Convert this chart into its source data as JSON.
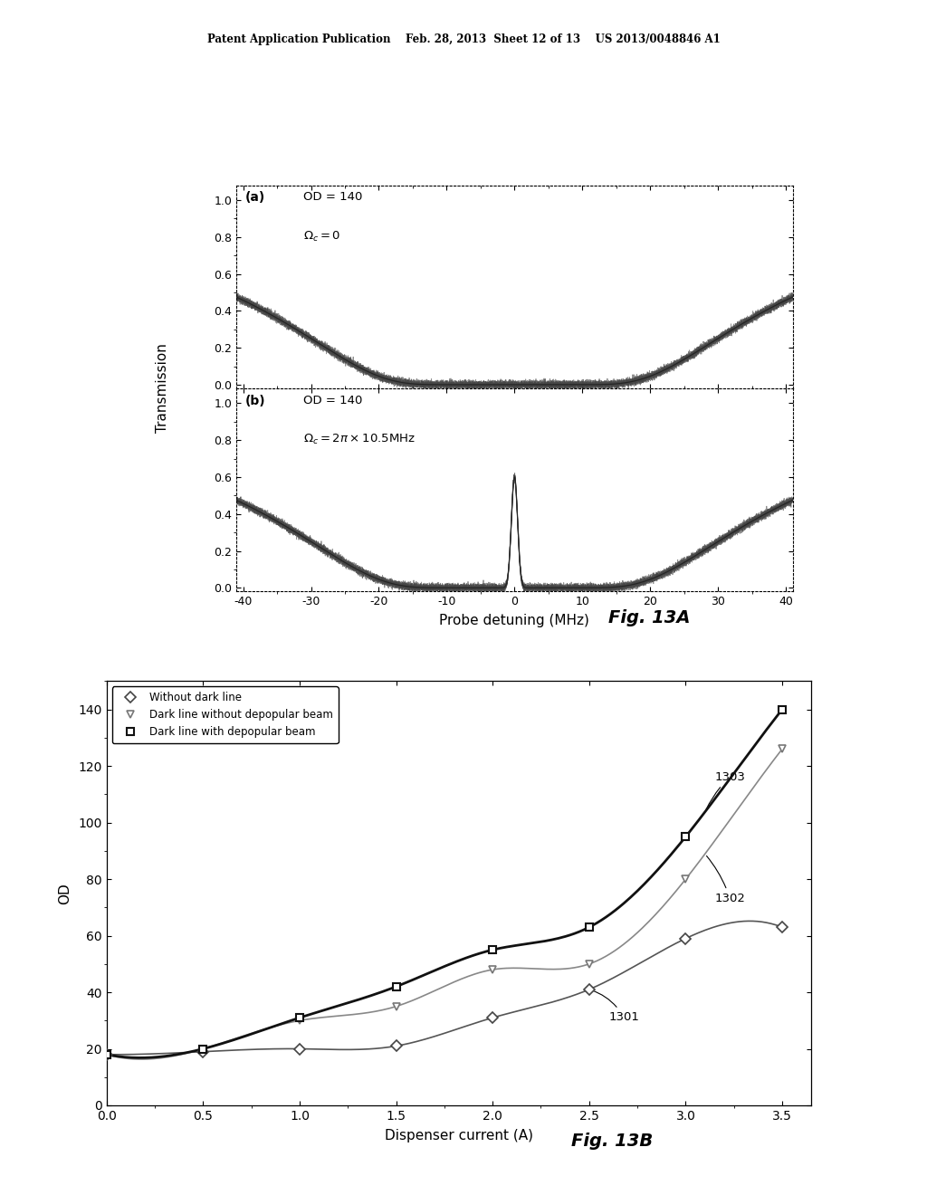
{
  "header_text": "Patent Application Publication    Feb. 28, 2013  Sheet 12 of 13    US 2013/0048846 A1",
  "fig13a_label": "Fig. 13A",
  "fig13b_label": "Fig. 13B",
  "plot_a_label": "(a)",
  "plot_b_label": "(b)",
  "plot_a_annotation1": "OD = 140",
  "plot_a_annotation2": "Ω⁣ = 0",
  "plot_b_annotation1": "OD = 140",
  "plot_b_annotation2": "Ω⁣ = 2π×10.5MHz",
  "transmission_ylabel": "Transmission",
  "transmission_xlabel": "Probe detuning (MHz)",
  "od_ylabel": "OD",
  "od_xlabel": "Dispenser current (A)",
  "xticks_transmission": [
    -40,
    -30,
    -20,
    -10,
    0,
    10,
    20,
    30,
    40
  ],
  "yticks_transmission": [
    0.0,
    0.2,
    0.4,
    0.6,
    0.8,
    1.0
  ],
  "xticks_od": [
    0.0,
    0.5,
    1.0,
    1.5,
    2.0,
    2.5,
    3.0,
    3.5
  ],
  "yticks_od": [
    0,
    20,
    40,
    60,
    80,
    100,
    120,
    140
  ],
  "legend_labels": [
    "Without dark line",
    "Dark line without depopular beam",
    "Dark line with depopular beam"
  ],
  "annotation_1301": "1301",
  "annotation_1302": "1302",
  "annotation_1303": "1303",
  "od_curve1_x": [
    0.0,
    0.5,
    1.0,
    1.5,
    2.0,
    2.5,
    3.0,
    3.5
  ],
  "od_curve1_y": [
    18,
    19,
    20,
    21,
    31,
    41,
    59,
    63
  ],
  "od_curve2_x": [
    0.0,
    0.5,
    1.0,
    1.5,
    2.0,
    2.5,
    3.0,
    3.5
  ],
  "od_curve2_y": [
    18,
    20,
    30,
    35,
    48,
    50,
    80,
    126
  ],
  "od_curve3_x": [
    0.0,
    0.5,
    1.0,
    1.5,
    2.0,
    2.5,
    3.0,
    3.5
  ],
  "od_curve3_y": [
    18,
    20,
    31,
    42,
    55,
    63,
    95,
    140
  ],
  "background_color": "#ffffff",
  "scatter_color": "#444444",
  "line1_color": "#555555",
  "line2_color": "#888888",
  "line3_color": "#111111"
}
